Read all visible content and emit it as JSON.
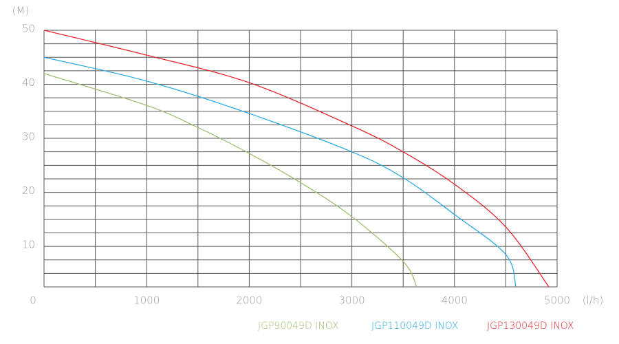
{
  "chart_data": {
    "type": "line",
    "y_label": "(M)",
    "x_label": "(l/h)",
    "xlim": [
      0,
      5000
    ],
    "ylim": [
      2.5,
      50
    ],
    "xticks": [
      0,
      1000,
      2000,
      3000,
      4000,
      5000
    ],
    "yticks": [
      10,
      20,
      30,
      40,
      50
    ],
    "xgrid": [
      0,
      500,
      1000,
      1500,
      2000,
      2500,
      3000,
      3500,
      4000,
      4500,
      5000
    ],
    "ygrid": [
      2.5,
      5,
      7.5,
      10,
      12.5,
      15,
      17.5,
      20,
      22.5,
      25,
      27.5,
      30,
      32.5,
      35,
      37.5,
      40,
      42.5,
      45,
      47.5,
      50
    ],
    "series": [
      {
        "name": "JGP90049D INOX",
        "color": "#9dbf6e",
        "x": [
          0,
          1000,
          1500,
          2000,
          2500,
          3000,
          3500,
          3633
        ],
        "values": [
          42,
          36.1,
          32,
          27.2,
          21.8,
          15.5,
          7.2,
          2.5
        ]
      },
      {
        "name": "JGP110049D INOX",
        "color": "#29abe2",
        "x": [
          0,
          1000,
          2000,
          3000,
          3500,
          4000,
          4500,
          4598
        ],
        "values": [
          45,
          40.6,
          34.6,
          27.5,
          22.7,
          15.9,
          8.5,
          2.5
        ]
      },
      {
        "name": "JGP130049D INOX",
        "color": "#e4262f",
        "x": [
          0,
          1000,
          2000,
          3000,
          3500,
          4000,
          4500,
          4920
        ],
        "values": [
          50,
          45.4,
          40.3,
          32.3,
          27.5,
          21.5,
          13.6,
          2.5
        ]
      }
    ]
  }
}
